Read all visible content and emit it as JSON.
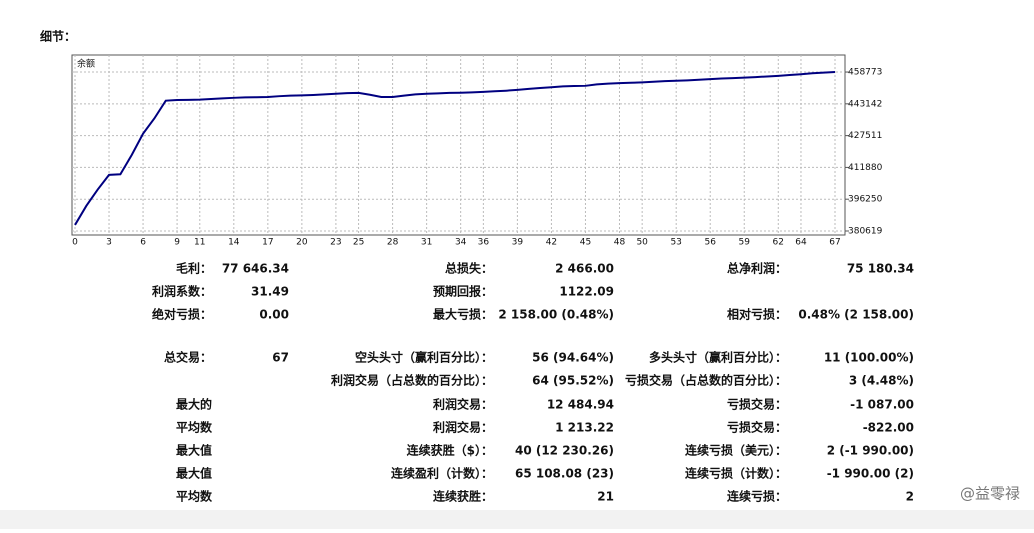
{
  "title": "细节：",
  "chart_data": {
    "type": "line",
    "title": "余额",
    "x": [
      0,
      1,
      2,
      3,
      4,
      5,
      6,
      7,
      8,
      9,
      10,
      11,
      12,
      13,
      14,
      15,
      16,
      17,
      18,
      19,
      20,
      21,
      22,
      23,
      24,
      25,
      26,
      27,
      28,
      29,
      30,
      31,
      32,
      33,
      34,
      35,
      36,
      37,
      38,
      39,
      40,
      41,
      42,
      43,
      44,
      45,
      46,
      47,
      48,
      49,
      50,
      51,
      52,
      53,
      54,
      55,
      56,
      57,
      58,
      59,
      60,
      61,
      62,
      63,
      64,
      65,
      66,
      67
    ],
    "series": [
      {
        "color": "#000080",
        "values": [
          383593,
          393000,
          401000,
          408200,
          408500,
          418000,
          428500,
          436000,
          444700,
          445000,
          445100,
          445200,
          445500,
          445800,
          446100,
          446300,
          446400,
          446500,
          446900,
          447200,
          447300,
          447500,
          447800,
          448100,
          448400,
          448500,
          447600,
          446500,
          446500,
          447200,
          447800,
          448100,
          448300,
          448500,
          448600,
          448800,
          449000,
          449300,
          449600,
          450000,
          450500,
          450900,
          451300,
          451700,
          451900,
          452000,
          452700,
          453100,
          453300,
          453500,
          453700,
          454000,
          454300,
          454500,
          454700,
          455000,
          455300,
          455600,
          455800,
          456000,
          456300,
          456600,
          456900,
          457300,
          457700,
          458200,
          458500,
          458773
        ]
      }
    ],
    "xlim": [
      0,
      67
    ],
    "xticks": [
      0,
      3,
      6,
      9,
      11,
      14,
      17,
      20,
      23,
      25,
      28,
      31,
      34,
      36,
      39,
      42,
      45,
      48,
      50,
      53,
      56,
      59,
      62,
      64,
      67
    ],
    "ylim": [
      378650,
      467150
    ],
    "yticks": [
      380619,
      396250,
      411880,
      427511,
      443142,
      458773
    ],
    "grid": true
  },
  "stats": {
    "rows": [
      [
        "毛利：",
        "77 646.34",
        "总损失：",
        "2 466.00",
        "总净利润：",
        "75 180.34"
      ],
      [
        "利润系数：",
        "31.49",
        "预期回报：",
        "1122.09",
        null,
        null
      ],
      [
        "绝对亏损：",
        "0.00",
        "最大亏损：",
        "2 158.00 (0.48%)",
        "相对亏损：",
        "0.48% (2 158.00)"
      ],
      [
        "总交易：",
        "67",
        "空头头寸（赢利百分比）：",
        "56 (94.64%)",
        "多头头寸（赢利百分比）：",
        "11 (100.00%)"
      ],
      [
        null,
        null,
        "利润交易（占总数的百分比）：",
        "64 (95.52%)",
        "亏损交易（占总数的百分比）：",
        "3 (4.48%)"
      ],
      [
        "最大的",
        null,
        "利润交易：",
        "12 484.94",
        "亏损交易：",
        "-1 087.00"
      ],
      [
        "平均数",
        null,
        "利润交易：",
        "1 213.22",
        "亏损交易：",
        "-822.00"
      ],
      [
        "最大值",
        null,
        "连续获胜（$）：",
        "40 (12 230.26)",
        "连续亏损（美元）：",
        "2 (-1 990.00)"
      ],
      [
        "最大值",
        null,
        "连续盈利（计数）：",
        "65 108.08 (23)",
        "连续亏损（计数）：",
        "-1 990.00 (2)"
      ],
      [
        "平均数",
        null,
        "连续获胜：",
        "21",
        "连续亏损：",
        "2"
      ]
    ]
  },
  "watermark": "@益零禄"
}
